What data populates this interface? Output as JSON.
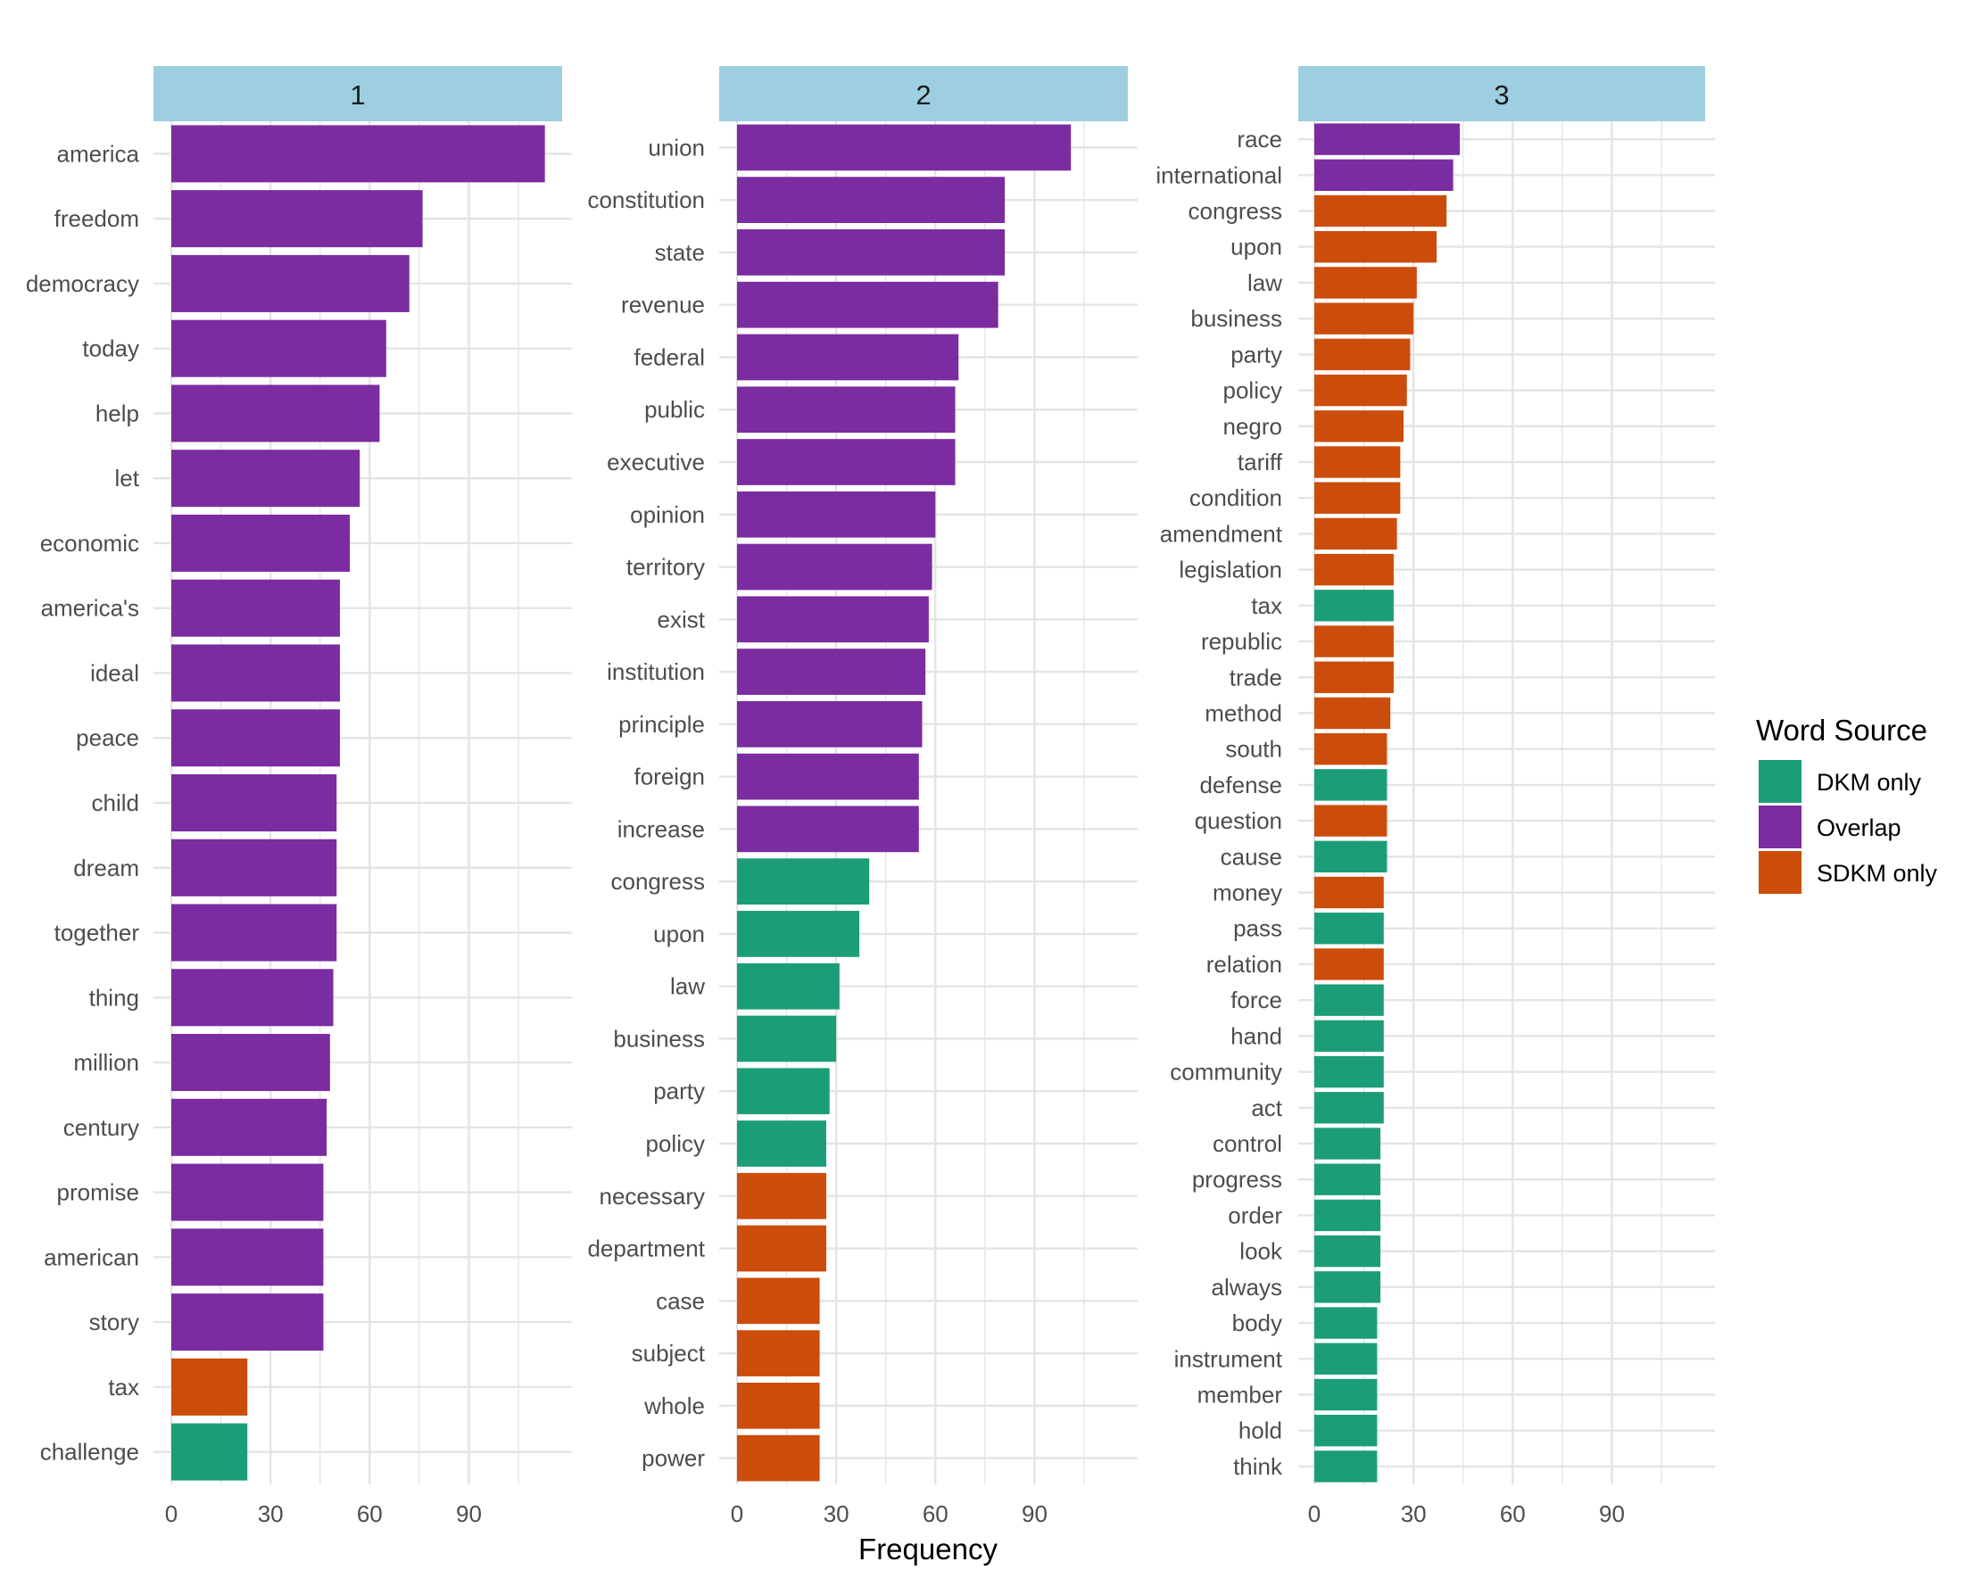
{
  "chart_data": {
    "type": "bar",
    "orientation": "horizontal",
    "xlabel": "Frequency",
    "xlim": [
      0,
      118
    ],
    "x_ticks": [
      0,
      30,
      60,
      90
    ],
    "legend": {
      "title": "Word Source",
      "position": "right",
      "entries": [
        {
          "key": "dkm",
          "label": "DKM only",
          "color": "#1B9E77"
        },
        {
          "key": "overlap",
          "label": "Overlap",
          "color": "#7B2CA0"
        },
        {
          "key": "sdkm",
          "label": "SDKM only",
          "color": "#CC4C0B"
        }
      ]
    },
    "strip_color": "#9ECFE1",
    "panels": [
      {
        "label": "1",
        "words": [
          {
            "word": "america",
            "value": 113,
            "source": "overlap"
          },
          {
            "word": "freedom",
            "value": 76,
            "source": "overlap"
          },
          {
            "word": "democracy",
            "value": 72,
            "source": "overlap"
          },
          {
            "word": "today",
            "value": 65,
            "source": "overlap"
          },
          {
            "word": "help",
            "value": 63,
            "source": "overlap"
          },
          {
            "word": "let",
            "value": 57,
            "source": "overlap"
          },
          {
            "word": "economic",
            "value": 54,
            "source": "overlap"
          },
          {
            "word": "america's",
            "value": 51,
            "source": "overlap"
          },
          {
            "word": "ideal",
            "value": 51,
            "source": "overlap"
          },
          {
            "word": "peace",
            "value": 51,
            "source": "overlap"
          },
          {
            "word": "child",
            "value": 50,
            "source": "overlap"
          },
          {
            "word": "dream",
            "value": 50,
            "source": "overlap"
          },
          {
            "word": "together",
            "value": 50,
            "source": "overlap"
          },
          {
            "word": "thing",
            "value": 49,
            "source": "overlap"
          },
          {
            "word": "million",
            "value": 48,
            "source": "overlap"
          },
          {
            "word": "century",
            "value": 47,
            "source": "overlap"
          },
          {
            "word": "promise",
            "value": 46,
            "source": "overlap"
          },
          {
            "word": "american",
            "value": 46,
            "source": "overlap"
          },
          {
            "word": "story",
            "value": 46,
            "source": "overlap"
          },
          {
            "word": "tax",
            "value": 23,
            "source": "sdkm"
          },
          {
            "word": "challenge",
            "value": 23,
            "source": "dkm"
          }
        ]
      },
      {
        "label": "2",
        "words": [
          {
            "word": "union",
            "value": 101,
            "source": "overlap"
          },
          {
            "word": "constitution",
            "value": 81,
            "source": "overlap"
          },
          {
            "word": "state",
            "value": 81,
            "source": "overlap"
          },
          {
            "word": "revenue",
            "value": 79,
            "source": "overlap"
          },
          {
            "word": "federal",
            "value": 67,
            "source": "overlap"
          },
          {
            "word": "public",
            "value": 66,
            "source": "overlap"
          },
          {
            "word": "executive",
            "value": 66,
            "source": "overlap"
          },
          {
            "word": "opinion",
            "value": 60,
            "source": "overlap"
          },
          {
            "word": "territory",
            "value": 59,
            "source": "overlap"
          },
          {
            "word": "exist",
            "value": 58,
            "source": "overlap"
          },
          {
            "word": "institution",
            "value": 57,
            "source": "overlap"
          },
          {
            "word": "principle",
            "value": 56,
            "source": "overlap"
          },
          {
            "word": "foreign",
            "value": 55,
            "source": "overlap"
          },
          {
            "word": "increase",
            "value": 55,
            "source": "overlap"
          },
          {
            "word": "congress",
            "value": 40,
            "source": "dkm"
          },
          {
            "word": "upon",
            "value": 37,
            "source": "dkm"
          },
          {
            "word": "law",
            "value": 31,
            "source": "dkm"
          },
          {
            "word": "business",
            "value": 30,
            "source": "dkm"
          },
          {
            "word": "party",
            "value": 28,
            "source": "dkm"
          },
          {
            "word": "policy",
            "value": 27,
            "source": "dkm"
          },
          {
            "word": "necessary",
            "value": 27,
            "source": "sdkm"
          },
          {
            "word": "department",
            "value": 27,
            "source": "sdkm"
          },
          {
            "word": "case",
            "value": 25,
            "source": "sdkm"
          },
          {
            "word": "subject",
            "value": 25,
            "source": "sdkm"
          },
          {
            "word": "whole",
            "value": 25,
            "source": "sdkm"
          },
          {
            "word": "power",
            "value": 25,
            "source": "sdkm"
          }
        ]
      },
      {
        "label": "3",
        "words": [
          {
            "word": "race",
            "value": 44,
            "source": "overlap"
          },
          {
            "word": "international",
            "value": 42,
            "source": "overlap"
          },
          {
            "word": "congress",
            "value": 40,
            "source": "sdkm"
          },
          {
            "word": "upon",
            "value": 37,
            "source": "sdkm"
          },
          {
            "word": "law",
            "value": 31,
            "source": "sdkm"
          },
          {
            "word": "business",
            "value": 30,
            "source": "sdkm"
          },
          {
            "word": "party",
            "value": 29,
            "source": "sdkm"
          },
          {
            "word": "policy",
            "value": 28,
            "source": "sdkm"
          },
          {
            "word": "negro",
            "value": 27,
            "source": "sdkm"
          },
          {
            "word": "tariff",
            "value": 26,
            "source": "sdkm"
          },
          {
            "word": "condition",
            "value": 26,
            "source": "sdkm"
          },
          {
            "word": "amendment",
            "value": 25,
            "source": "sdkm"
          },
          {
            "word": "legislation",
            "value": 24,
            "source": "sdkm"
          },
          {
            "word": "tax",
            "value": 24,
            "source": "dkm"
          },
          {
            "word": "republic",
            "value": 24,
            "source": "sdkm"
          },
          {
            "word": "trade",
            "value": 24,
            "source": "sdkm"
          },
          {
            "word": "method",
            "value": 23,
            "source": "sdkm"
          },
          {
            "word": "south",
            "value": 22,
            "source": "sdkm"
          },
          {
            "word": "defense",
            "value": 22,
            "source": "dkm"
          },
          {
            "word": "question",
            "value": 22,
            "source": "sdkm"
          },
          {
            "word": "cause",
            "value": 22,
            "source": "dkm"
          },
          {
            "word": "money",
            "value": 21,
            "source": "sdkm"
          },
          {
            "word": "pass",
            "value": 21,
            "source": "dkm"
          },
          {
            "word": "relation",
            "value": 21,
            "source": "sdkm"
          },
          {
            "word": "force",
            "value": 21,
            "source": "dkm"
          },
          {
            "word": "hand",
            "value": 21,
            "source": "dkm"
          },
          {
            "word": "community",
            "value": 21,
            "source": "dkm"
          },
          {
            "word": "act",
            "value": 21,
            "source": "dkm"
          },
          {
            "word": "control",
            "value": 20,
            "source": "dkm"
          },
          {
            "word": "progress",
            "value": 20,
            "source": "dkm"
          },
          {
            "word": "order",
            "value": 20,
            "source": "dkm"
          },
          {
            "word": "look",
            "value": 20,
            "source": "dkm"
          },
          {
            "word": "always",
            "value": 20,
            "source": "dkm"
          },
          {
            "word": "body",
            "value": 19,
            "source": "dkm"
          },
          {
            "word": "instrument",
            "value": 19,
            "source": "dkm"
          },
          {
            "word": "member",
            "value": 19,
            "source": "dkm"
          },
          {
            "word": "hold",
            "value": 19,
            "source": "dkm"
          },
          {
            "word": "think",
            "value": 19,
            "source": "dkm"
          }
        ]
      }
    ]
  }
}
